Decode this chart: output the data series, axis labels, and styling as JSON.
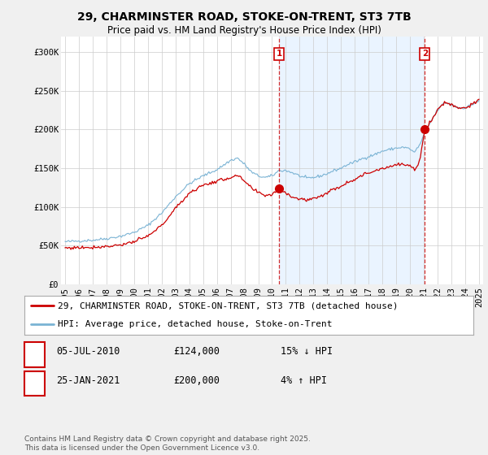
{
  "title": "29, CHARMINSTER ROAD, STOKE-ON-TRENT, ST3 7TB",
  "subtitle": "Price paid vs. HM Land Registry's House Price Index (HPI)",
  "hpi_color": "#7ab3d4",
  "price_color": "#cc0000",
  "marker_color": "#cc0000",
  "shade_color": "#ddeeff",
  "bg_color": "#f0f0f0",
  "plot_bg_color": "#ffffff",
  "ylim": [
    0,
    320000
  ],
  "yticks": [
    0,
    50000,
    100000,
    150000,
    200000,
    250000,
    300000
  ],
  "ytick_labels": [
    "£0",
    "£50K",
    "£100K",
    "£150K",
    "£200K",
    "£250K",
    "£300K"
  ],
  "xmin_year": 1995,
  "xmax_year": 2025,
  "xticks": [
    1995,
    1996,
    1997,
    1998,
    1999,
    2000,
    2001,
    2002,
    2003,
    2004,
    2005,
    2006,
    2007,
    2008,
    2009,
    2010,
    2011,
    2012,
    2013,
    2014,
    2015,
    2016,
    2017,
    2018,
    2019,
    2020,
    2021,
    2022,
    2023,
    2024,
    2025
  ],
  "purchase1_date_label": "05-JUL-2010",
  "purchase1_price": 124000,
  "purchase1_price_label": "£124,000",
  "purchase1_label": "1",
  "purchase1_hpi_diff": "15% ↓ HPI",
  "purchase1_x": 2010.51,
  "purchase1_y": 124000,
  "purchase2_date_label": "25-JAN-2021",
  "purchase2_price": 200000,
  "purchase2_price_label": "£200,000",
  "purchase2_label": "2",
  "purchase2_hpi_diff": "4% ↑ HPI",
  "purchase2_x": 2021.07,
  "purchase2_y": 200000,
  "legend_house": "29, CHARMINSTER ROAD, STOKE-ON-TRENT, ST3 7TB (detached house)",
  "legend_hpi": "HPI: Average price, detached house, Stoke-on-Trent",
  "footer": "Contains HM Land Registry data © Crown copyright and database right 2025.\nThis data is licensed under the Open Government Licence v3.0.",
  "grid_color": "#cccccc",
  "title_fontsize": 10,
  "subtitle_fontsize": 8.5,
  "tick_fontsize": 7.5,
  "legend_fontsize": 8,
  "footer_fontsize": 6.5
}
